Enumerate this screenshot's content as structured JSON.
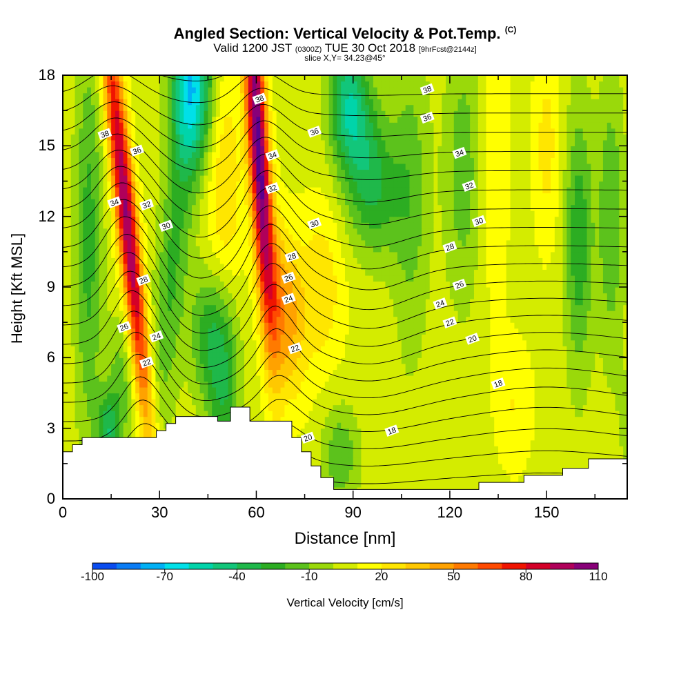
{
  "title": {
    "main": "Angled Section: Vertical Velocity & Pot.Temp.",
    "copyright": "(C)",
    "valid": "Valid 1200 JST",
    "utc": "(0300Z)",
    "date": "TUE 30 Oct 2018",
    "forecast": "[9hrFcst@2144z]",
    "slice": "slice X,Y= 34.23@45°"
  },
  "chart_data": {
    "type": "heatmap",
    "xlabel": "Distance [nm]",
    "ylabel": "Height [Kft MSL]",
    "xlim": [
      0,
      175
    ],
    "ylim": [
      0,
      18
    ],
    "x_ticks": [
      "0",
      "30",
      "60",
      "90",
      "120",
      "150"
    ],
    "y_ticks": [
      "0",
      "3",
      "6",
      "9",
      "12",
      "15",
      "18"
    ],
    "colorbar": {
      "label": "Vertical Velocity [cm/s]",
      "tick_labels": [
        "-100",
        "-70",
        "-40",
        "-10",
        "20",
        "50",
        "80",
        "110"
      ],
      "min": -100,
      "max": 110,
      "step": 10,
      "colors": [
        "#1c12e8",
        "#0a4cf0",
        "#0a7cf5",
        "#00b0f5",
        "#00e0e8",
        "#00d4aa",
        "#12c67a",
        "#1fb84a",
        "#2cad22",
        "#5cc21c",
        "#9ad90a",
        "#d4ec00",
        "#ffff00",
        "#ffe600",
        "#ffc800",
        "#ffa200",
        "#ff7a00",
        "#ff4a00",
        "#f01400",
        "#d40028",
        "#b0005a",
        "#880078",
        "#5a0090"
      ]
    },
    "features": {
      "updrafts": [
        {
          "x": 22,
          "peak": 95,
          "x_top": 22,
          "x_bottom": 22
        },
        {
          "x": 62,
          "peak": 105,
          "x_top": 62,
          "x_bottom": 62
        }
      ],
      "downdrafts": [
        {
          "x": 40,
          "y": 17,
          "min": -75
        },
        {
          "x": 14,
          "y": 2.8,
          "min": -45
        },
        {
          "x": 88,
          "y": 1.5,
          "min": -35
        },
        {
          "x": 160,
          "y": 11,
          "min": -30
        }
      ]
    },
    "terrain_kft": [
      [
        0,
        2
      ],
      [
        3,
        2
      ],
      [
        3,
        2.3
      ],
      [
        6,
        2.3
      ],
      [
        6,
        2.6
      ],
      [
        19,
        2.6
      ],
      [
        19,
        2.6
      ],
      [
        29,
        2.6
      ],
      [
        29,
        2.9
      ],
      [
        32,
        2.9
      ],
      [
        32,
        3.2
      ],
      [
        35,
        3.2
      ],
      [
        35,
        3.5
      ],
      [
        48,
        3.5
      ],
      [
        48,
        3.3
      ],
      [
        52,
        3.3
      ],
      [
        52,
        3.9
      ],
      [
        58,
        3.9
      ],
      [
        58,
        3.3
      ],
      [
        71,
        3.3
      ],
      [
        71,
        2.6
      ],
      [
        74,
        2.6
      ],
      [
        74,
        2.0
      ],
      [
        77,
        2.0
      ],
      [
        77,
        1.4
      ],
      [
        80,
        1.4
      ],
      [
        80,
        0.9
      ],
      [
        84,
        0.9
      ],
      [
        84,
        0.4
      ],
      [
        100,
        0.4
      ],
      [
        129,
        0.4
      ],
      [
        129,
        0.7
      ],
      [
        143,
        0.7
      ],
      [
        143,
        1.0
      ],
      [
        155,
        1.0
      ],
      [
        155,
        1.3
      ],
      [
        163,
        1.3
      ],
      [
        163,
        1.7
      ],
      [
        175,
        1.7
      ]
    ],
    "theta_contours": {
      "levels": [
        18,
        19,
        20,
        21,
        22,
        23,
        24,
        25,
        26,
        27,
        28,
        29,
        30,
        31,
        32,
        33,
        34,
        35,
        36,
        37,
        38,
        39
      ],
      "labels": [
        {
          "text": "38",
          "x": 13,
          "y": 15.5
        },
        {
          "text": "36",
          "x": 23,
          "y": 14.8
        },
        {
          "text": "34",
          "x": 16,
          "y": 12.6
        },
        {
          "text": "32",
          "x": 26,
          "y": 12.5
        },
        {
          "text": "30",
          "x": 32,
          "y": 11.6
        },
        {
          "text": "28",
          "x": 25,
          "y": 9.3
        },
        {
          "text": "26",
          "x": 19,
          "y": 7.3
        },
        {
          "text": "24",
          "x": 29,
          "y": 6.9
        },
        {
          "text": "22",
          "x": 26,
          "y": 5.8
        },
        {
          "text": "38",
          "x": 61,
          "y": 17
        },
        {
          "text": "36",
          "x": 78,
          "y": 15.6
        },
        {
          "text": "34",
          "x": 65,
          "y": 14.6
        },
        {
          "text": "32",
          "x": 65,
          "y": 13.2
        },
        {
          "text": "30",
          "x": 78,
          "y": 11.7
        },
        {
          "text": "28",
          "x": 71,
          "y": 10.3
        },
        {
          "text": "26",
          "x": 70,
          "y": 9.4
        },
        {
          "text": "24",
          "x": 70,
          "y": 8.5
        },
        {
          "text": "22",
          "x": 72,
          "y": 6.4
        },
        {
          "text": "20",
          "x": 76,
          "y": 2.6
        },
        {
          "text": "18",
          "x": 102,
          "y": 2.9
        },
        {
          "text": "38",
          "x": 113,
          "y": 17.4
        },
        {
          "text": "36",
          "x": 113,
          "y": 16.2
        },
        {
          "text": "34",
          "x": 123,
          "y": 14.7
        },
        {
          "text": "32",
          "x": 126,
          "y": 13.3
        },
        {
          "text": "30",
          "x": 129,
          "y": 11.8
        },
        {
          "text": "28",
          "x": 120,
          "y": 10.7
        },
        {
          "text": "26",
          "x": 123,
          "y": 9.1
        },
        {
          "text": "24",
          "x": 117,
          "y": 8.3
        },
        {
          "text": "22",
          "x": 120,
          "y": 7.5
        },
        {
          "text": "20",
          "x": 127,
          "y": 6.8
        },
        {
          "text": "18",
          "x": 135,
          "y": 4.9
        }
      ]
    }
  }
}
